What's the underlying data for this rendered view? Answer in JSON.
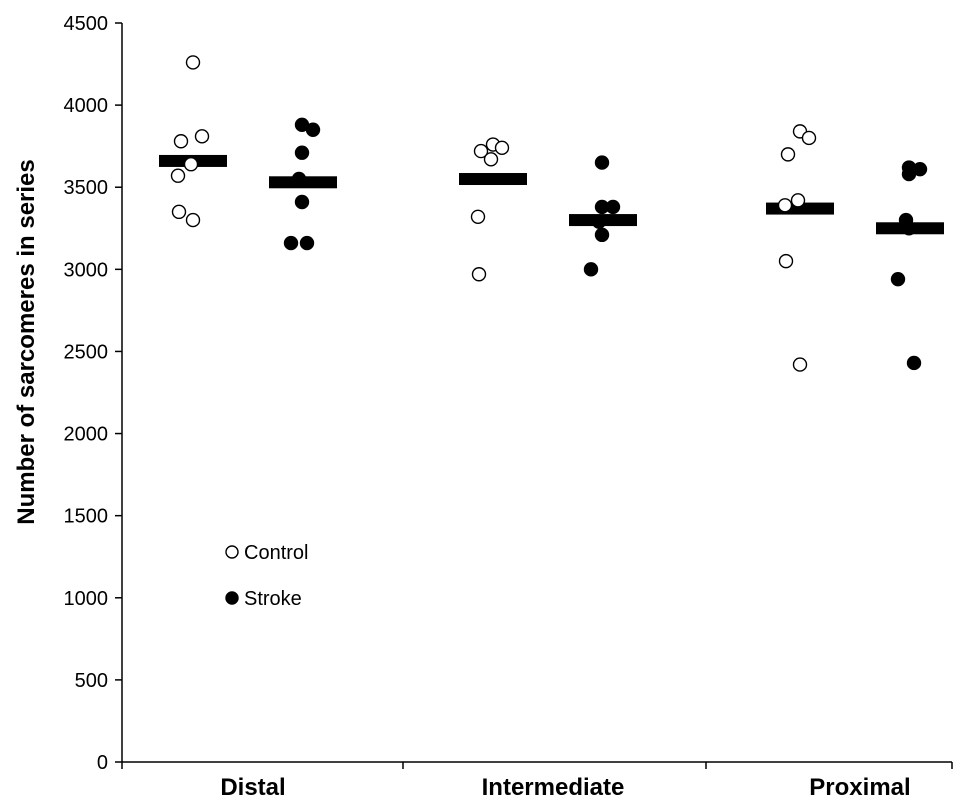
{
  "chart_data": {
    "type": "scatter",
    "ylabel": "Number of sarcomeres in series",
    "xlabel": "",
    "ylim": [
      0,
      4500
    ],
    "yticks": [
      0,
      500,
      1000,
      1500,
      2000,
      2500,
      3000,
      3500,
      4000,
      4500
    ],
    "categories": [
      "Distal",
      "Intermediate",
      "Proximal"
    ],
    "legend": {
      "placement": "lower-left"
    },
    "grid": false,
    "series": [
      {
        "name": "Control",
        "marker": "open-circle",
        "color": "#000000",
        "points": [
          {
            "category": "Distal",
            "y": 4260
          },
          {
            "category": "Distal",
            "y": 3810
          },
          {
            "category": "Distal",
            "y": 3780
          },
          {
            "category": "Distal",
            "y": 3640
          },
          {
            "category": "Distal",
            "y": 3570
          },
          {
            "category": "Distal",
            "y": 3350
          },
          {
            "category": "Distal",
            "y": 3300
          },
          {
            "category": "Intermediate",
            "y": 3760
          },
          {
            "category": "Intermediate",
            "y": 3740
          },
          {
            "category": "Intermediate",
            "y": 3720
          },
          {
            "category": "Intermediate",
            "y": 3670
          },
          {
            "category": "Intermediate",
            "y": 3320
          },
          {
            "category": "Intermediate",
            "y": 2970
          },
          {
            "category": "Proximal",
            "y": 3840
          },
          {
            "category": "Proximal",
            "y": 3800
          },
          {
            "category": "Proximal",
            "y": 3700
          },
          {
            "category": "Proximal",
            "y": 3420
          },
          {
            "category": "Proximal",
            "y": 3390
          },
          {
            "category": "Proximal",
            "y": 3050
          },
          {
            "category": "Proximal",
            "y": 2420
          }
        ],
        "means": [
          3660,
          3550,
          3370
        ]
      },
      {
        "name": "Stroke",
        "marker": "filled-circle",
        "color": "#000000",
        "points": [
          {
            "category": "Distal",
            "y": 3880
          },
          {
            "category": "Distal",
            "y": 3850
          },
          {
            "category": "Distal",
            "y": 3710
          },
          {
            "category": "Distal",
            "y": 3550
          },
          {
            "category": "Distal",
            "y": 3410
          },
          {
            "category": "Distal",
            "y": 3160
          },
          {
            "category": "Distal",
            "y": 3160
          },
          {
            "category": "Intermediate",
            "y": 3650
          },
          {
            "category": "Intermediate",
            "y": 3380
          },
          {
            "category": "Intermediate",
            "y": 3380
          },
          {
            "category": "Intermediate",
            "y": 3290
          },
          {
            "category": "Intermediate",
            "y": 3210
          },
          {
            "category": "Intermediate",
            "y": 3000
          },
          {
            "category": "Proximal",
            "y": 3620
          },
          {
            "category": "Proximal",
            "y": 3610
          },
          {
            "category": "Proximal",
            "y": 3580
          },
          {
            "category": "Proximal",
            "y": 3300
          },
          {
            "category": "Proximal",
            "y": 3250
          },
          {
            "category": "Proximal",
            "y": 2940
          },
          {
            "category": "Proximal",
            "y": 2430
          }
        ],
        "means": [
          3530,
          3300,
          3250
        ]
      }
    ]
  }
}
